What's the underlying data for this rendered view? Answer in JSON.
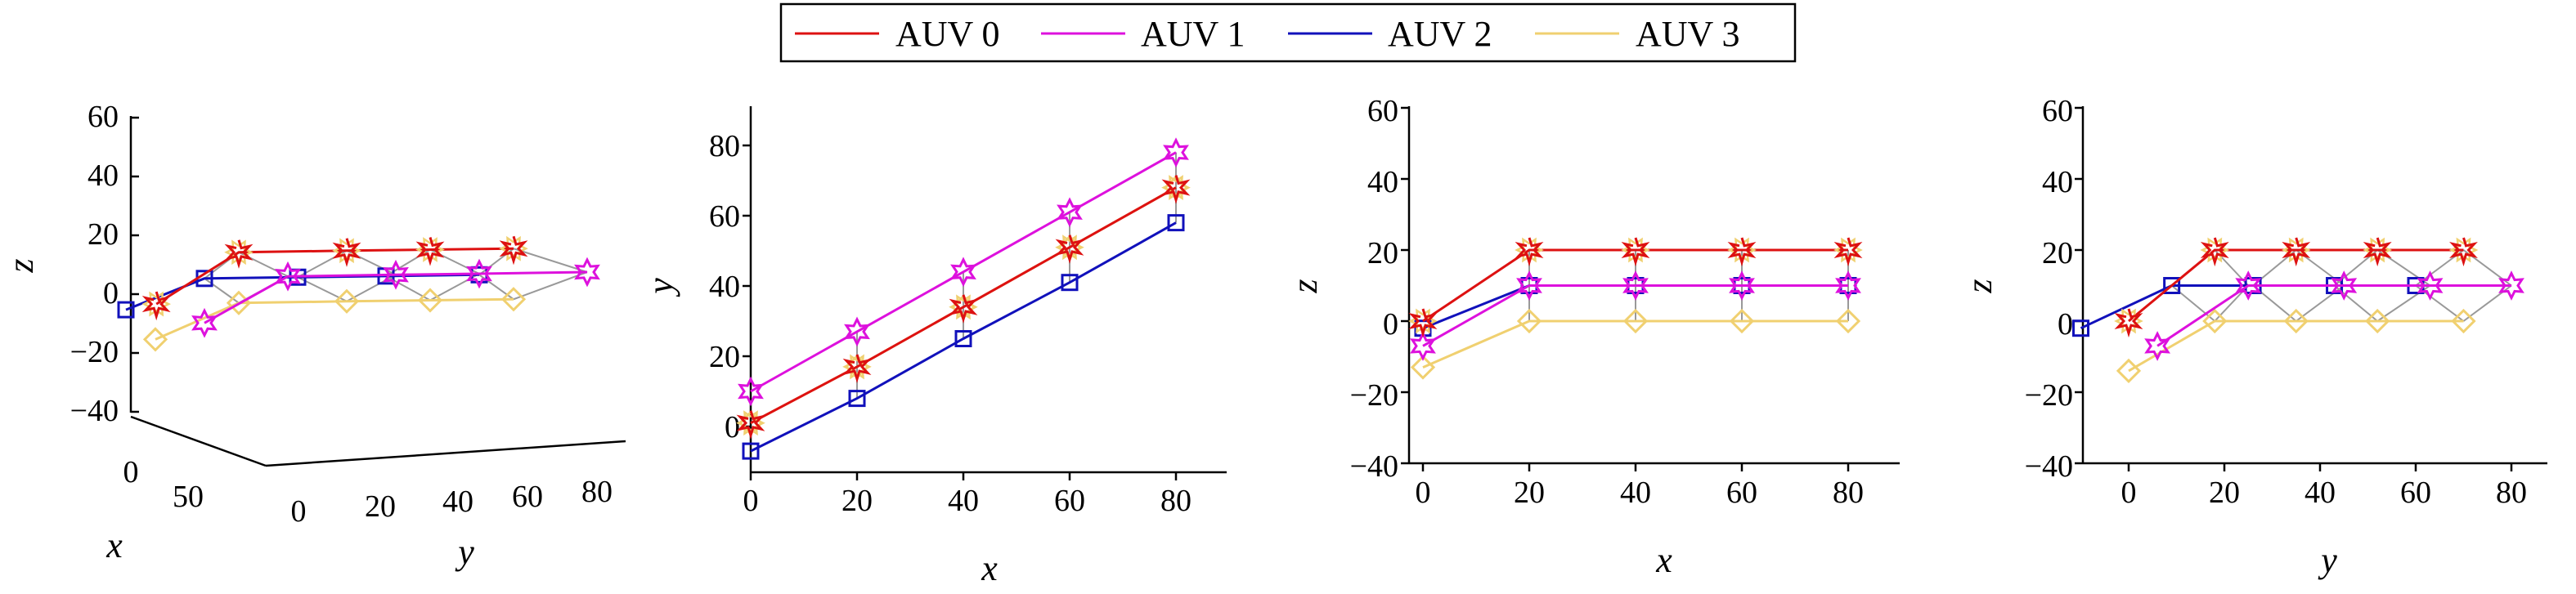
{
  "legend": [
    {
      "name": "AUV 0",
      "color": "#dd1111"
    },
    {
      "name": "AUV 1",
      "color": "#dd11dd"
    },
    {
      "name": "AUV 2",
      "color": "#1111bb"
    },
    {
      "name": "AUV 3",
      "color": "#f0d070"
    }
  ],
  "links_color": "#999999",
  "chart_data": [
    {
      "type": "line",
      "view": "3D perspective (x, y, z)",
      "xlabel": "x",
      "ylabel": "y",
      "zlabel": "z",
      "x_ticks": [
        "0",
        "50"
      ],
      "y_ticks": [
        "0",
        "20",
        "40",
        "60",
        "80"
      ],
      "z_ticks": [
        "60",
        "40",
        "20",
        "0",
        "−20",
        "−40"
      ],
      "zlim": [
        -40,
        60
      ],
      "grid": false,
      "legend_placement": "top-center",
      "series": [
        {
          "name": "AUV 0",
          "marker": "star",
          "points": [
            [
              2,
              0,
              0
            ],
            [
              20,
              15,
              20
            ],
            [
              40,
              35,
              20
            ],
            [
              60,
              50,
              20
            ],
            [
              80,
              65,
              20
            ]
          ]
        },
        {
          "name": "AUV 1",
          "marker": "star",
          "points": [
            [
              0,
              10,
              -8
            ],
            [
              20,
              25,
              10
            ],
            [
              40,
              45,
              10
            ],
            [
              60,
              60,
              10
            ],
            [
              80,
              80,
              10
            ]
          ]
        },
        {
          "name": "AUV 2",
          "marker": "square",
          "points": [
            [
              0,
              -6,
              -2
            ],
            [
              20,
              8,
              10
            ],
            [
              40,
              25,
              10
            ],
            [
              60,
              41,
              10
            ],
            [
              80,
              58,
              10
            ]
          ]
        },
        {
          "name": "AUV 3",
          "marker": "diamond",
          "points": [
            [
              0,
              0,
              -14
            ],
            [
              20,
              15,
              0
            ],
            [
              40,
              35,
              0
            ],
            [
              60,
              50,
              0
            ],
            [
              80,
              65,
              0
            ]
          ]
        }
      ]
    },
    {
      "type": "line",
      "view": "top (x-y)",
      "xlabel": "x",
      "ylabel": "y",
      "x_ticks": [
        "0",
        "20",
        "40",
        "60",
        "80"
      ],
      "y_ticks": [
        "0",
        "20",
        "40",
        "60",
        "80"
      ],
      "xlim": [
        0,
        90
      ],
      "ylim": [
        -10,
        90
      ],
      "grid": false,
      "series": [
        {
          "name": "AUV 0",
          "marker": "star",
          "x": [
            0,
            20,
            40,
            60,
            80
          ],
          "y": [
            1,
            17,
            34,
            51,
            68
          ]
        },
        {
          "name": "AUV 1",
          "marker": "star",
          "x": [
            0,
            20,
            40,
            60,
            80
          ],
          "y": [
            10,
            27,
            44,
            61,
            78
          ]
        },
        {
          "name": "AUV 2",
          "marker": "square",
          "x": [
            0,
            20,
            40,
            60,
            80
          ],
          "y": [
            -7,
            8,
            25,
            41,
            58
          ]
        },
        {
          "name": "AUV 3",
          "marker": "diamond",
          "x": [
            0,
            20,
            40,
            60,
            80
          ],
          "y": [
            1,
            17,
            34,
            51,
            68
          ]
        }
      ]
    },
    {
      "type": "line",
      "view": "side (x-z)",
      "xlabel": "x",
      "ylabel": "z",
      "x_ticks": [
        "0",
        "20",
        "40",
        "60",
        "80"
      ],
      "y_ticks": [
        "60",
        "40",
        "20",
        "0",
        "−20",
        "−40"
      ],
      "xlim": [
        -2,
        90
      ],
      "ylim": [
        -40,
        60
      ],
      "grid": false,
      "series": [
        {
          "name": "AUV 0",
          "marker": "star",
          "x": [
            0,
            20,
            40,
            60,
            80
          ],
          "y": [
            0,
            20,
            20,
            20,
            20
          ]
        },
        {
          "name": "AUV 1",
          "marker": "star",
          "x": [
            0,
            20,
            40,
            60,
            80
          ],
          "y": [
            -7,
            10,
            10,
            10,
            10
          ]
        },
        {
          "name": "AUV 2",
          "marker": "square",
          "x": [
            0,
            20,
            40,
            60,
            80
          ],
          "y": [
            -2,
            10,
            10,
            10,
            10
          ]
        },
        {
          "name": "AUV 3",
          "marker": "diamond",
          "x": [
            0,
            20,
            40,
            60,
            80
          ],
          "y": [
            -13,
            0,
            0,
            0,
            0
          ]
        }
      ]
    },
    {
      "type": "line",
      "view": "side (y-z)",
      "xlabel": "y",
      "ylabel": "z",
      "x_ticks": [
        "0",
        "20",
        "40",
        "60",
        "80"
      ],
      "y_ticks": [
        "60",
        "40",
        "20",
        "0",
        "−20",
        "−40"
      ],
      "xlim": [
        -12,
        90
      ],
      "ylim": [
        -40,
        60
      ],
      "grid": false,
      "series": [
        {
          "name": "AUV 0",
          "marker": "star",
          "x": [
            0,
            18,
            35,
            52,
            70
          ],
          "y": [
            0,
            20,
            20,
            20,
            20
          ]
        },
        {
          "name": "AUV 1",
          "marker": "star",
          "x": [
            6,
            25,
            45,
            63,
            80
          ],
          "y": [
            -7,
            10,
            10,
            10,
            10
          ]
        },
        {
          "name": "AUV 2",
          "marker": "square",
          "x": [
            -10,
            9,
            26,
            43,
            60
          ],
          "y": [
            -2,
            10,
            10,
            10,
            10
          ]
        },
        {
          "name": "AUV 3",
          "marker": "diamond",
          "x": [
            0,
            18,
            35,
            52,
            70
          ],
          "y": [
            -14,
            0,
            0,
            0,
            0
          ]
        }
      ]
    }
  ]
}
